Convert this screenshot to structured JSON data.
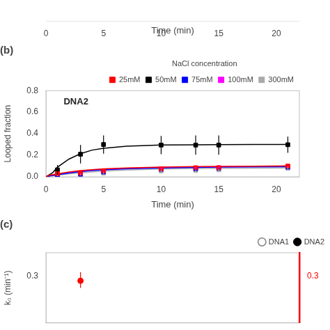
{
  "chart_data": [
    {
      "type": "line",
      "xlabel": "Time (min)",
      "xlim": [
        0,
        22
      ],
      "xticks": [
        0,
        5,
        10,
        15,
        20
      ],
      "tick_labels": "x",
      "grid": false,
      "series": []
    },
    {
      "type": "line",
      "title": "(b)",
      "xlabel": "Time (min)",
      "ylabel": "Looped fraction",
      "xlim": [
        0,
        22
      ],
      "ylim": [
        0.0,
        0.8
      ],
      "xticks": [
        0,
        5,
        10,
        15,
        20
      ],
      "yticks": [
        {
          "value": 0.0,
          "label": "0.0"
        },
        0.2,
        0.4,
        0.6,
        0.8
      ],
      "grid": false,
      "legend": "upper right",
      "legend_title": "NaCl concentration",
      "annotations": [
        {
          "text": "DNA2"
        }
      ],
      "series": [
        {
          "name": "25mM",
          "color": "#ff0000",
          "marker": "square",
          "x": [
            1,
            3,
            5,
            10,
            13,
            15,
            21
          ],
          "values": [
            0.03,
            0.035,
            0.055,
            0.075,
            0.085,
            0.085,
            0.1
          ],
          "errors": [
            0.01,
            0.01,
            0.012,
            0.012,
            0.01,
            0.01,
            0.012
          ],
          "fit_x": [
            0,
            0.3,
            0.7,
            1,
            2,
            3,
            4,
            5,
            7,
            10,
            13,
            15,
            18,
            21
          ],
          "fit_y": [
            0.0,
            0.015,
            0.022,
            0.028,
            0.046,
            0.058,
            0.067,
            0.074,
            0.083,
            0.09,
            0.095,
            0.097,
            0.099,
            0.101
          ]
        },
        {
          "name": "50mM",
          "color": "#000000",
          "marker": "square",
          "x": [
            1,
            3,
            5,
            10,
            13,
            15,
            21
          ],
          "values": [
            0.065,
            0.21,
            0.3,
            0.295,
            0.295,
            0.295,
            0.298
          ],
          "errors": [
            0.045,
            0.085,
            0.085,
            0.085,
            0.09,
            0.09,
            0.075
          ],
          "fit_x": [
            0,
            0.3,
            0.6,
            1,
            2,
            3,
            4,
            5,
            7,
            10,
            13,
            15,
            18,
            21
          ],
          "fit_y": [
            0.0,
            0.02,
            0.04,
            0.09,
            0.165,
            0.215,
            0.248,
            0.265,
            0.285,
            0.295,
            0.298,
            0.299,
            0.3,
            0.3
          ]
        },
        {
          "name": "75mM",
          "color": "#0000ff",
          "marker": "square",
          "x": [
            1,
            3,
            5,
            10,
            13,
            15,
            21
          ],
          "values": [
            0.005,
            0.025,
            0.045,
            0.07,
            0.075,
            0.08,
            0.09
          ],
          "errors": [
            0.005,
            0.008,
            0.01,
            0.01,
            0.01,
            0.01,
            0.01
          ],
          "fit_x": [
            0,
            0.3,
            0.7,
            1,
            2,
            3,
            4,
            5,
            7,
            10,
            13,
            15,
            18,
            21
          ],
          "fit_y": [
            0.0,
            0.008,
            0.014,
            0.02,
            0.035,
            0.048,
            0.058,
            0.065,
            0.075,
            0.083,
            0.088,
            0.09,
            0.092,
            0.093
          ]
        },
        {
          "name": "100mM",
          "color": "#ff00ff",
          "marker": "square",
          "x": [
            1,
            3,
            5,
            10,
            13,
            15,
            21
          ],
          "values": [
            0.01,
            0.03,
            0.05,
            0.075,
            0.08,
            0.085,
            0.095
          ],
          "errors": [
            0.005,
            0.008,
            0.008,
            0.01,
            0.01,
            0.01,
            0.01
          ],
          "fit_x": [
            0,
            0.3,
            0.7,
            1,
            2,
            3,
            4,
            5,
            7,
            10,
            13,
            15,
            18,
            21
          ],
          "fit_y": [
            0.0,
            0.01,
            0.017,
            0.022,
            0.038,
            0.051,
            0.061,
            0.069,
            0.079,
            0.087,
            0.091,
            0.093,
            0.095,
            0.096
          ]
        },
        {
          "name": "300mM",
          "color": "#aaaaaa",
          "marker": "square",
          "x": [
            1,
            3,
            5,
            10,
            13,
            15,
            21
          ],
          "values": [
            0.01,
            0.02,
            0.035,
            0.055,
            0.06,
            0.065,
            0.08
          ],
          "errors": [
            0.004,
            0.006,
            0.008,
            0.008,
            0.008,
            0.008,
            0.01
          ],
          "fit_x": [
            0,
            0.3,
            0.7,
            1,
            2,
            3,
            4,
            5,
            7,
            10,
            13,
            15,
            18,
            21
          ],
          "fit_y": [
            0.0,
            0.006,
            0.011,
            0.015,
            0.027,
            0.037,
            0.046,
            0.053,
            0.063,
            0.072,
            0.077,
            0.079,
            0.081,
            0.082
          ]
        }
      ]
    },
    {
      "type": "scatter",
      "title": "(c)",
      "ylabel": "k₀ (min⁻¹)",
      "xlim": [
        0,
        22
      ],
      "ylim": [
        0.0,
        0.45
      ],
      "xticks": [],
      "yticks": [
        0.3
      ],
      "y2lim": [
        0.0,
        0.45
      ],
      "y2ticks": [
        0.3
      ],
      "y2color": "#ff0000",
      "grid": false,
      "legend": "upper right",
      "series": [
        {
          "name": "DNA1",
          "color": "#808080",
          "marker": "open_circle",
          "x": [],
          "values": []
        },
        {
          "name": "DNA2",
          "color": "#000000",
          "marker": "circle",
          "x": [],
          "values": []
        },
        {
          "color": "#ff0000",
          "marker": "circle",
          "x": [
            3
          ],
          "values": [
            0.27
          ],
          "err_low": [
            0.045
          ],
          "err_high": [
            0.055
          ]
        }
      ]
    }
  ]
}
